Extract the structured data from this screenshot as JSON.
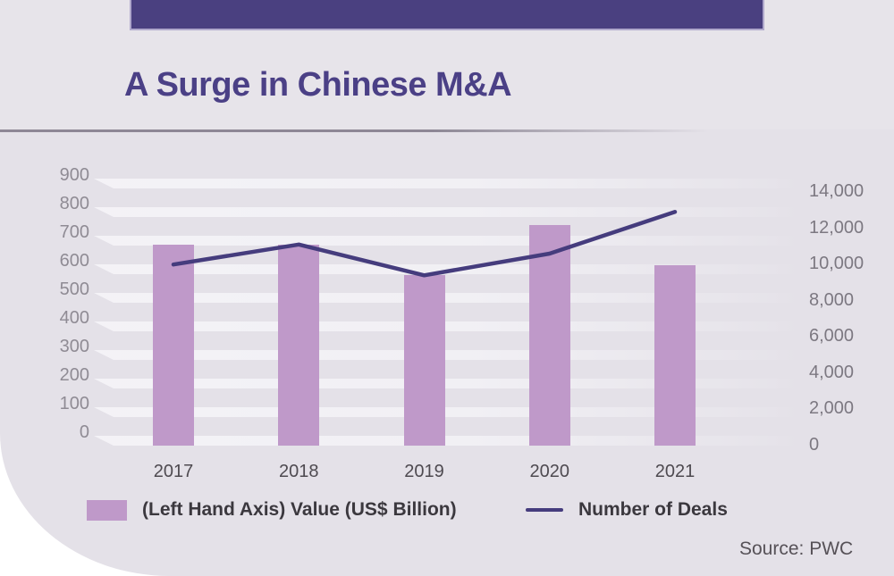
{
  "header": {
    "title": "A Surge in Chinese M&A"
  },
  "legend": {
    "bar_label": "(Left Hand Axis) Value (US$ Billion)",
    "line_label": "Number of Deals"
  },
  "source": {
    "label": "Source: PWC"
  },
  "colors": {
    "bar_fill": "#bf99c9",
    "line_stroke": "#453c7d",
    "banner": "#4a4080",
    "banner_border": "#b0a8cc",
    "title_text": "#4b4086",
    "panel_background": "#e4e1e8",
    "grid_band": "#f4f3f7",
    "left_tick_text": "#8f8b94",
    "right_tick_text": "#7c7881",
    "x_tick_text": "#4e4a50"
  },
  "chart_data": {
    "type": "combo-bar-line",
    "title": "A Surge in Chinese M&A",
    "categories": [
      "2017",
      "2018",
      "2019",
      "2020",
      "2021"
    ],
    "series": [
      {
        "name": "(Left Hand Axis) Value (US$ Billion)",
        "type": "bar",
        "axis": "left",
        "values": [
          655,
          655,
          550,
          725,
          585
        ]
      },
      {
        "name": "Number of Deals",
        "type": "line",
        "axis": "right",
        "values": [
          9950,
          11050,
          9350,
          10550,
          12850
        ]
      }
    ],
    "left_axis": {
      "ticks": [
        0,
        100,
        200,
        300,
        400,
        500,
        600,
        700,
        800,
        900
      ],
      "range": [
        0,
        900
      ]
    },
    "right_axis": {
      "ticks": [
        0,
        2000,
        4000,
        6000,
        8000,
        10000,
        12000,
        14000
      ],
      "range": [
        0,
        14000
      ]
    },
    "grid": "horizontal-bands",
    "legend_position": "bottom",
    "source": "Source: PWC"
  }
}
